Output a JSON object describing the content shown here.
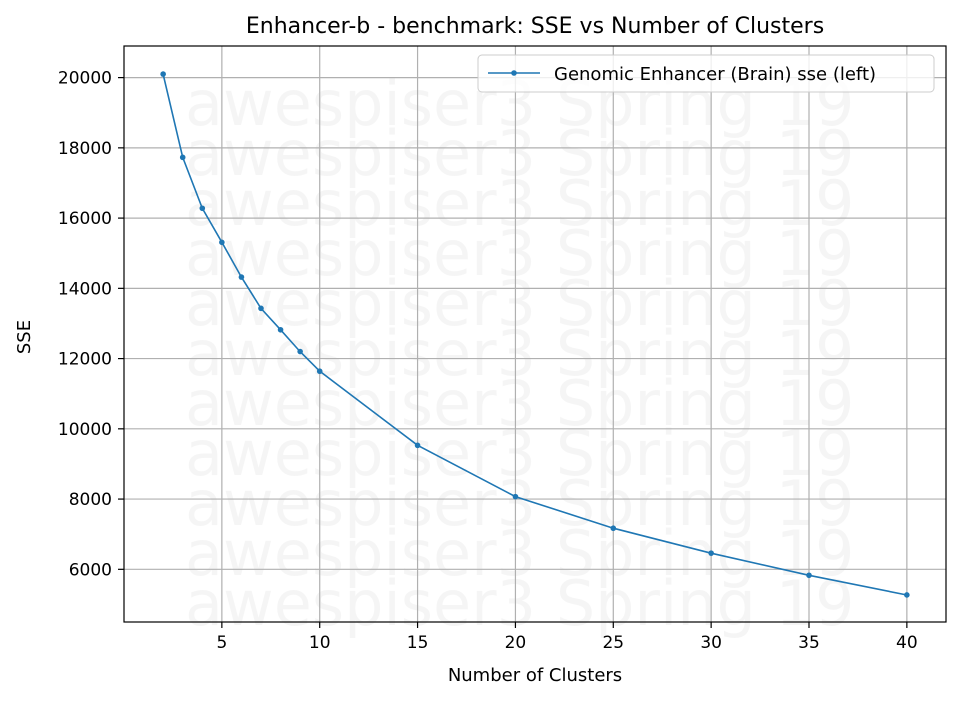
{
  "chart_data": {
    "type": "line",
    "title": "Enhancer-b - benchmark: SSE vs Number of Clusters",
    "xlabel": "Number of Clusters",
    "ylabel": "SSE",
    "xlim": [
      0,
      42
    ],
    "ylim": [
      4500,
      20900
    ],
    "xticks": [
      5,
      10,
      15,
      20,
      25,
      30,
      35,
      40
    ],
    "yticks": [
      6000,
      8000,
      10000,
      12000,
      14000,
      16000,
      18000,
      20000
    ],
    "grid": true,
    "legend_position": "top-right",
    "watermark_text": "awespiser3 Spring 19",
    "watermark_rows": 11,
    "series": [
      {
        "name": "Genomic Enhancer (Brain) sse (left)",
        "color": "#1f77b4",
        "x": [
          2,
          3,
          4,
          5,
          6,
          7,
          8,
          9,
          10,
          15,
          20,
          25,
          30,
          35,
          40
        ],
        "y": [
          20100,
          17730,
          16280,
          15310,
          14320,
          13430,
          12820,
          12200,
          11640,
          9530,
          8070,
          7170,
          6460,
          5830,
          5270
        ]
      }
    ]
  }
}
